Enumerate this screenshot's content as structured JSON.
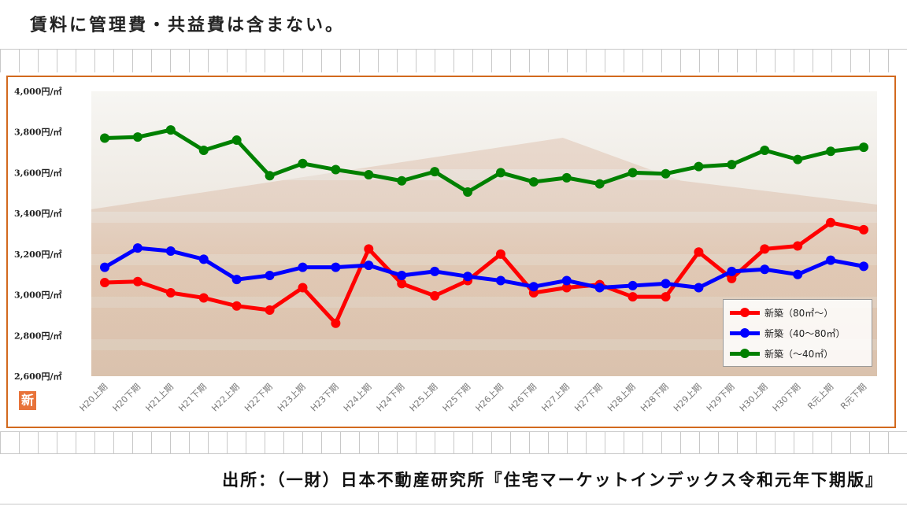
{
  "header": {
    "note": "賃料に管理費・共益費は含まない。"
  },
  "footer": {
    "source": "出所：（一財）日本不動産研究所『住宅マーケットインデックス令和元年下期版』"
  },
  "badge": {
    "text": "新"
  },
  "chart_data": {
    "type": "line",
    "title": "",
    "xlabel": "",
    "ylabel": "",
    "ylim": [
      2600,
      4000
    ],
    "y_ticks": [
      2600,
      2800,
      3000,
      3200,
      3400,
      3600,
      3800,
      4000
    ],
    "y_tick_labels": [
      "2,600円/㎡",
      "2,800円/㎡",
      "3,000円/㎡",
      "3,200円/㎡",
      "3,400円/㎡",
      "3,600円/㎡",
      "3,800円/㎡",
      "4,000円/㎡"
    ],
    "categories": [
      "H20上期",
      "H20下期",
      "H21上期",
      "H21下期",
      "H22上期",
      "H22下期",
      "H23上期",
      "H23下期",
      "H24上期",
      "H24下期",
      "H25上期",
      "H25下期",
      "H26上期",
      "H26下期",
      "H27上期",
      "H27下期",
      "H28上期",
      "H28下期",
      "H29上期",
      "H29下期",
      "H30上期",
      "H30下期",
      "R元上期",
      "R元下期"
    ],
    "legend_position": "bottom-right",
    "grid": false,
    "series": [
      {
        "name": "新築（80㎡～）",
        "color": "#ff0000",
        "values": [
          3060,
          3065,
          3010,
          2985,
          2945,
          2925,
          3035,
          2860,
          3225,
          3055,
          2995,
          3070,
          3200,
          3010,
          3035,
          3050,
          2990,
          2990,
          3210,
          3080,
          3225,
          3240,
          3355,
          3320
        ]
      },
      {
        "name": "新築（40～80㎡）",
        "color": "#0000ff",
        "values": [
          3135,
          3230,
          3215,
          3175,
          3075,
          3095,
          3135,
          3135,
          3145,
          3095,
          3115,
          3090,
          3070,
          3040,
          3070,
          3035,
          3045,
          3055,
          3035,
          3115,
          3125,
          3100,
          3170,
          3140
        ]
      },
      {
        "name": "新築（～40㎡）",
        "color": "#008000",
        "values": [
          3770,
          3775,
          3810,
          3710,
          3760,
          3585,
          3645,
          3615,
          3590,
          3560,
          3605,
          3505,
          3600,
          3555,
          3575,
          3545,
          3600,
          3595,
          3630,
          3640,
          3710,
          3665,
          3705,
          3725
        ]
      }
    ]
  }
}
